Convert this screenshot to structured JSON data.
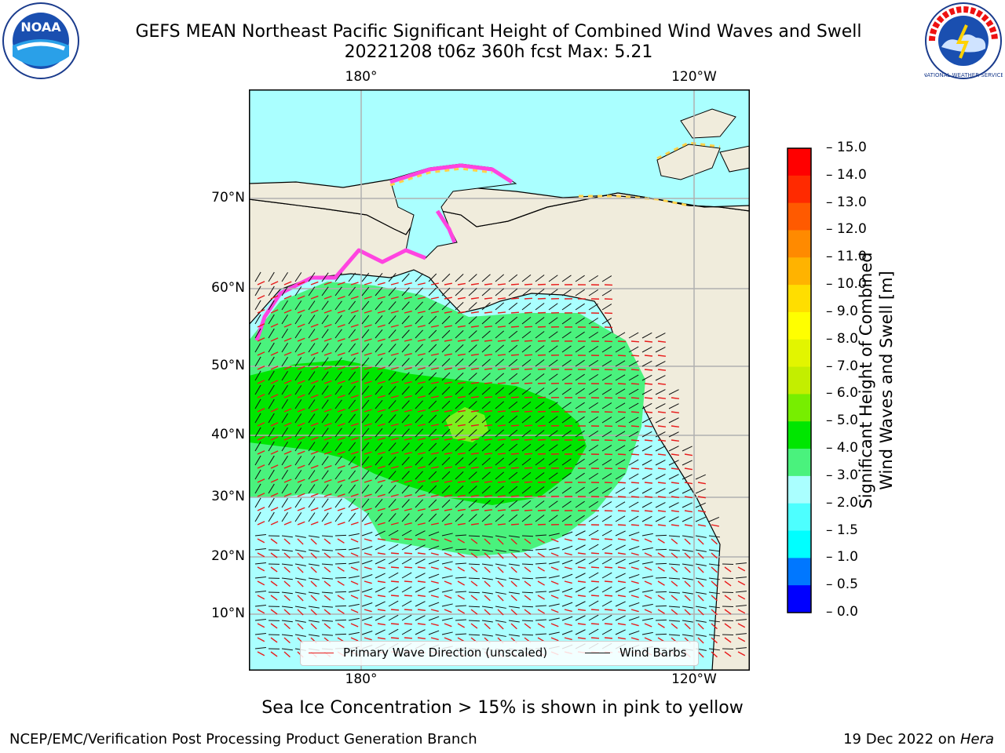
{
  "title": {
    "line1": "GEFS MEAN Northeast Pacific Significant Height of Combined Wind Waves and Swell",
    "line2": "20221208 t06z 360h fcst   Max: 5.21"
  },
  "map": {
    "lon_labels": [
      "180°",
      "120°W"
    ],
    "lat_labels": [
      "70°N",
      "60°N",
      "50°N",
      "40°N",
      "30°N",
      "20°N",
      "10°N"
    ],
    "colors": {
      "land": "#f0ecdc",
      "ocean_low": "#aaffff",
      "ocean_mid": "#4af27d",
      "ocean_high": "#00e600",
      "ocean_peak": "#7cf01f",
      "wave_arrow": "#e81b1b",
      "wind_barb": "#111111",
      "ice_pink": "#ff44e0",
      "ice_yellow": "#ffd24a",
      "grid": "#b0b0b0"
    }
  },
  "legend": {
    "wave_label": "Primary Wave Direction (unscaled)",
    "wind_label": "Wind Barbs"
  },
  "colorbar": {
    "title_line1": "Significant Height of Combined",
    "title_line2": "Wind Waves and Swell [m]",
    "ticks": [
      "15.0",
      "14.0",
      "13.0",
      "12.0",
      "11.0",
      "10.0",
      "9.0",
      "8.0",
      "7.0",
      "6.0",
      "5.0",
      "4.0",
      "3.0",
      "2.0",
      "1.5",
      "1.0",
      "0.5",
      "0.0"
    ],
    "bands_top_to_bottom": [
      "#ff0000",
      "#ff2a00",
      "#ff5a00",
      "#ff8a00",
      "#ffb300",
      "#ffde00",
      "#ffff00",
      "#e2f500",
      "#c3ee00",
      "#77ee00",
      "#00e600",
      "#4af27d",
      "#aaffff",
      "#4dffff",
      "#00ffff",
      "#0077ff",
      "#0000ff"
    ]
  },
  "notes": {
    "ice": "Sea Ice Concentration > 15% is shown in pink to yellow"
  },
  "footer": {
    "left": "NCEP/EMC/Verification Post Processing Product Generation Branch",
    "right_prefix": "19 Dec 2022 on ",
    "right_host": "Hera"
  },
  "logos": {
    "noaa_text": "NOAA",
    "nws_text": "NATIONAL WEATHER SERVICE"
  }
}
